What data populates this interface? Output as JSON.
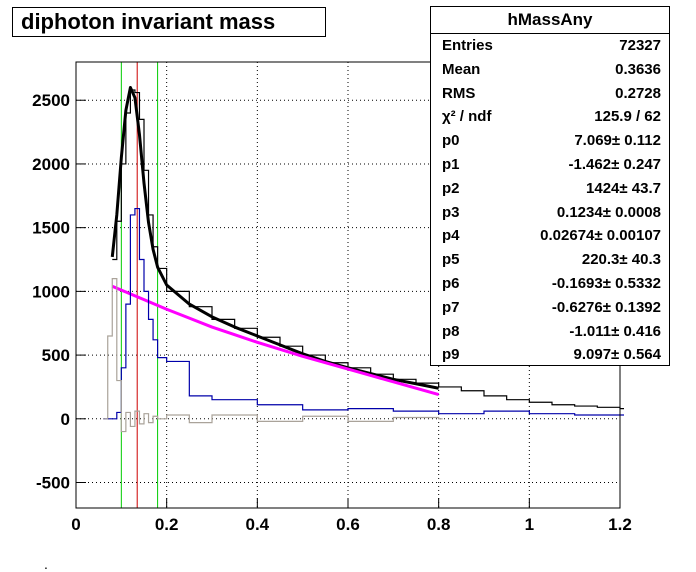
{
  "chart_data": {
    "type": "histogram",
    "title": "diphoton invariant mass",
    "xlim": [
      0,
      1.2
    ],
    "ylim": [
      -700,
      2800
    ],
    "x_ticks": [
      "0",
      "0.2",
      "0.4",
      "0.6",
      "0.8",
      "1",
      "1.2"
    ],
    "y_ticks": [
      "-500",
      "0",
      "500",
      "1000",
      "1500",
      "2000",
      "2500"
    ],
    "grid": true,
    "vertical_lines": [
      {
        "x": 0.1,
        "color": "#00cc00"
      },
      {
        "x": 0.135,
        "color": "#cc0000"
      },
      {
        "x": 0.18,
        "color": "#00cc00"
      }
    ],
    "series": [
      {
        "role": "data-histogram",
        "color": "#000000",
        "x": [
          0.08,
          0.09,
          0.1,
          0.11,
          0.12,
          0.13,
          0.14,
          0.15,
          0.16,
          0.17,
          0.18,
          0.2,
          0.25,
          0.3,
          0.35,
          0.4,
          0.45,
          0.5,
          0.55,
          0.6,
          0.65,
          0.7,
          0.75,
          0.8,
          0.85,
          0.9,
          0.95,
          1.0,
          1.05,
          1.1,
          1.15,
          1.2
        ],
        "y": [
          1250,
          1550,
          2000,
          2400,
          2580,
          2560,
          2350,
          1950,
          1600,
          1350,
          1180,
          1000,
          880,
          780,
          710,
          640,
          570,
          500,
          440,
          400,
          350,
          310,
          280,
          250,
          220,
          180,
          150,
          130,
          110,
          100,
          90,
          80
        ]
      },
      {
        "role": "total-fit",
        "color": "#000000",
        "x": [
          0.08,
          0.09,
          0.1,
          0.11,
          0.12,
          0.13,
          0.14,
          0.15,
          0.16,
          0.17,
          0.18,
          0.2,
          0.25,
          0.3,
          0.35,
          0.4,
          0.45,
          0.5,
          0.55,
          0.6,
          0.65,
          0.7,
          0.75,
          0.8
        ],
        "y": [
          1270,
          1600,
          2050,
          2420,
          2600,
          2520,
          2230,
          1850,
          1540,
          1330,
          1190,
          1050,
          900,
          800,
          720,
          650,
          580,
          510,
          450,
          400,
          355,
          310,
          275,
          240
        ]
      },
      {
        "role": "background-fit",
        "color": "#ff00ff",
        "x": [
          0.08,
          0.1,
          0.15,
          0.2,
          0.25,
          0.3,
          0.35,
          0.4,
          0.45,
          0.5,
          0.55,
          0.6,
          0.65,
          0.7,
          0.75,
          0.8
        ],
        "y": [
          1040,
          1010,
          935,
          860,
          790,
          720,
          660,
          600,
          545,
          490,
          440,
          390,
          340,
          290,
          240,
          190
        ]
      },
      {
        "role": "signal-histogram",
        "color": "#0000aa",
        "x": [
          0.06,
          0.07,
          0.08,
          0.09,
          0.1,
          0.11,
          0.12,
          0.13,
          0.14,
          0.15,
          0.16,
          0.17,
          0.18,
          0.2,
          0.25,
          0.3,
          0.4,
          0.5,
          0.6,
          0.7,
          0.8,
          0.9,
          1.0,
          1.1,
          1.2
        ],
        "y": [
          0,
          0,
          0,
          50,
          400,
          900,
          1600,
          1650,
          1250,
          1000,
          780,
          620,
          480,
          450,
          180,
          150,
          110,
          70,
          80,
          60,
          40,
          60,
          40,
          30,
          30
        ]
      },
      {
        "role": "residual-histogram",
        "color": "#aaa39a",
        "x": [
          0.06,
          0.07,
          0.08,
          0.09,
          0.1,
          0.11,
          0.12,
          0.13,
          0.14,
          0.15,
          0.16,
          0.17,
          0.18,
          0.2,
          0.25,
          0.3,
          0.4,
          0.5,
          0.6,
          0.7,
          0.8
        ],
        "y": [
          0,
          650,
          1100,
          300,
          -100,
          50,
          -60,
          60,
          -40,
          40,
          -30,
          20,
          0,
          30,
          -30,
          30,
          -20,
          20,
          -20,
          10,
          0
        ]
      }
    ]
  },
  "stats": {
    "title": "hMassAny",
    "rows": [
      {
        "label": "Entries",
        "value": "72327"
      },
      {
        "label": "Mean",
        "value": "0.3636"
      },
      {
        "label": "RMS",
        "value": "0.2728"
      },
      {
        "label": "χ² / ndf",
        "value": "125.9 / 62"
      },
      {
        "label": "p0",
        "value": "7.069± 0.112"
      },
      {
        "label": "p1",
        "value": "-1.462± 0.247"
      },
      {
        "label": "p2",
        "value": "1424± 43.7"
      },
      {
        "label": "p3",
        "value": "0.1234± 0.0008"
      },
      {
        "label": "p4",
        "value": "0.02674± 0.00107"
      },
      {
        "label": "p5",
        "value": "220.3± 40.3"
      },
      {
        "label": "p6",
        "value": "-0.1693± 0.5332"
      },
      {
        "label": "p7",
        "value": "-0.6276± 0.1392"
      },
      {
        "label": "p8",
        "value": "-1.011± 0.416"
      },
      {
        "label": "p9",
        "value": "9.097± 0.564"
      }
    ]
  },
  "footer_mark": "."
}
